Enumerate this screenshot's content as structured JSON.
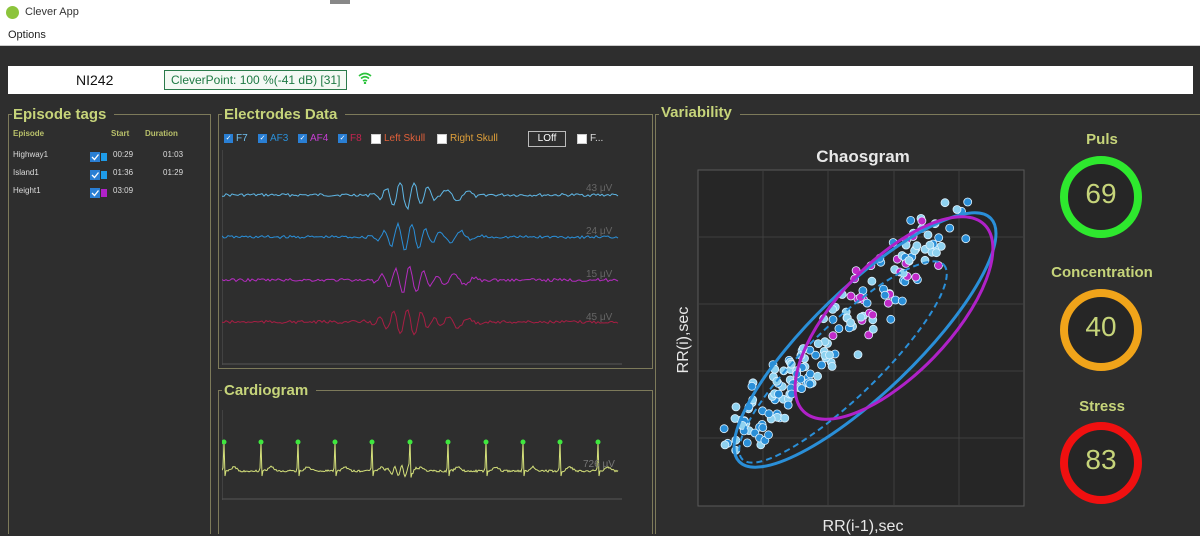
{
  "window": {
    "title": "Clever App"
  },
  "menu": {
    "options": "Options"
  },
  "header": {
    "device": "NI242",
    "cleverpoint": "CleverPoint: 100 %(-41 dB) [31]"
  },
  "episode_tags": {
    "title": "Episode tags",
    "columns": {
      "episode": "Episode",
      "start": "Start",
      "duration": "Duration"
    },
    "rows": [
      {
        "name": "Highway1",
        "start": "00:29",
        "duration": "01:03",
        "color": "#1e9be8"
      },
      {
        "name": "Island1",
        "start": "01:36",
        "duration": "01:29",
        "color": "#1e9be8"
      },
      {
        "name": "Height1",
        "start": "03:09",
        "duration": "",
        "color": "#b021c8"
      }
    ]
  },
  "electrodes": {
    "title": "Electrodes Data",
    "channels": [
      {
        "label": "F7",
        "checked": true,
        "color": "#4ab3e0"
      },
      {
        "label": "AF3",
        "checked": true,
        "color": "#2a8fd8"
      },
      {
        "label": "AF4",
        "checked": true,
        "color": "#b52cc0"
      },
      {
        "label": "F8",
        "checked": true,
        "color": "#b0204a"
      },
      {
        "label": "Left Skull",
        "checked": false,
        "color": "#e0603a"
      },
      {
        "label": "Right Skull",
        "checked": false,
        "color": "#e0a03a"
      }
    ],
    "loff_label": "LOff",
    "f_label": "F...",
    "amplitudes": [
      "43 μV",
      "24 μV",
      "15 μV",
      "45 μV"
    ]
  },
  "cardiogram": {
    "title": "Cardiogram",
    "amplitude": "726 μV"
  },
  "variability": {
    "title": "Variability",
    "chart": {
      "title": "Chaosgram",
      "ylabel": "RR(i),sec",
      "xlabel": "RR(i-1),sec"
    }
  },
  "metrics": [
    {
      "label": "Puls",
      "value": "69",
      "color": "#2ee82e"
    },
    {
      "label": "Concentration",
      "value": "40",
      "color": "#f0a41a"
    },
    {
      "label": "Stress",
      "value": "83",
      "color": "#f01010"
    }
  ]
}
